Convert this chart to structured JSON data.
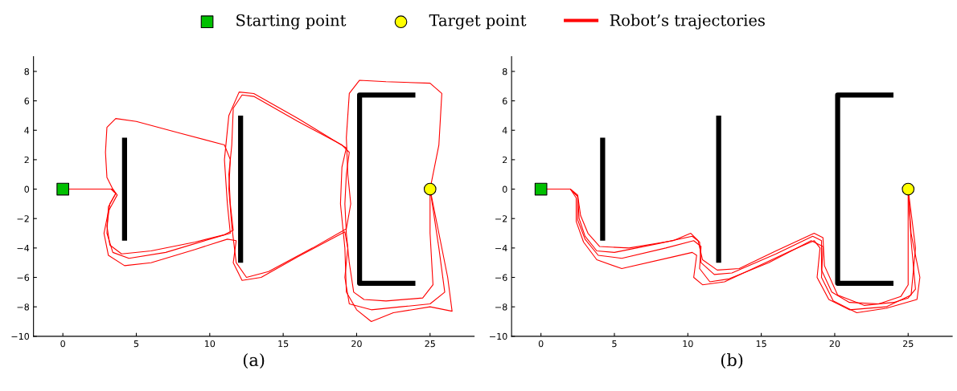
{
  "chart_data": [
    {
      "type": "line",
      "xlabel": "(a)",
      "xlim": [
        -2,
        28
      ],
      "ylim": [
        -10,
        9
      ],
      "xticks": [
        0,
        5,
        10,
        15,
        20,
        25
      ],
      "yticks": [
        -10,
        -8,
        -6,
        -4,
        -2,
        0,
        2,
        4,
        6,
        8
      ],
      "grid": false,
      "legend": "top",
      "series": [
        {
          "color": "#000000",
          "x": [
            4.2,
            4.2
          ],
          "values": [
            -3.5,
            3.5
          ]
        },
        {
          "color": "#000000",
          "x": [
            12.1,
            12.1
          ],
          "values": [
            -5,
            5
          ]
        },
        {
          "color": "#000000",
          "x": [
            24,
            20.2,
            20.2,
            24
          ],
          "values": [
            6.4,
            6.4,
            -6.4,
            -6.4
          ]
        },
        {
          "name": "Robot’s trajectories",
          "color": "#ff0000",
          "x": [
            0,
            3.3,
            3.6,
            3.2,
            3,
            3.2,
            4,
            6,
            9,
            11,
            11.6,
            11.4,
            11.3,
            11.5,
            11.6,
            12.2,
            13,
            16,
            19,
            19.5,
            19.3,
            19.2,
            19.3,
            19.5,
            19.8,
            20.5,
            22,
            24.5,
            25.2,
            25,
            25
          ],
          "values": [
            0,
            0,
            -0.3,
            -1,
            -2.5,
            -3.8,
            -4.4,
            -4.2,
            -3.6,
            -3.1,
            -2.8,
            -1,
            1,
            3,
            5.5,
            6.4,
            6.3,
            4.6,
            3,
            2.5,
            1,
            -1,
            -3,
            -5,
            -7,
            -7.5,
            -7.6,
            -7.4,
            -6.5,
            -3,
            0
          ]
        },
        {
          "color": "#ff0000",
          "x": [
            0,
            3.3,
            3.5,
            3,
            2.9,
            3,
            3.6,
            5,
            8,
            11,
            11.4,
            11.3,
            11.5,
            11.8,
            12.5,
            14,
            17,
            19.3,
            19.6,
            19.4,
            19.3,
            19.5,
            20.2,
            22,
            25,
            25.8,
            25.6,
            25
          ],
          "values": [
            0,
            0,
            -0.2,
            0.8,
            2.5,
            4.2,
            4.8,
            4.6,
            3.8,
            3,
            2,
            0,
            -2.5,
            -5,
            -6,
            -5.6,
            -4,
            -2.7,
            -1,
            1,
            3.5,
            6.5,
            7.4,
            7.3,
            7.2,
            6.5,
            3,
            0
          ]
        },
        {
          "color": "#ff0000",
          "x": [
            0,
            3.4,
            3.7,
            3.1,
            2.8,
            3.1,
            4.2,
            6,
            9,
            11.2,
            11.8,
            11.6,
            12.2,
            13.5,
            16,
            19.2,
            19.4,
            19.2,
            19.5,
            21,
            23,
            25,
            26,
            25.6,
            25
          ],
          "values": [
            0,
            0,
            -0.4,
            -1.5,
            -3,
            -4.5,
            -5.2,
            -5,
            -4.1,
            -3.4,
            -3.5,
            -5,
            -6.2,
            -6,
            -4.6,
            -2.9,
            -4,
            -6,
            -7.8,
            -8.2,
            -8,
            -7.8,
            -7,
            -4,
            0
          ]
        },
        {
          "color": "#ff0000",
          "x": [
            0,
            3.4,
            3.6,
            3.1,
            3,
            3.4,
            4.5,
            7,
            10,
            11.4,
            11.2,
            11,
            11.3,
            12,
            13,
            16,
            19.3,
            19,
            18.9,
            19.2,
            19.3,
            20,
            21,
            22.5,
            25,
            26.5,
            26.2,
            25
          ],
          "values": [
            0,
            0,
            -0.3,
            -1.2,
            -3,
            -4.3,
            -4.7,
            -4.3,
            -3.4,
            -3,
            -1,
            2,
            5,
            6.6,
            6.5,
            4.8,
            2.8,
            1.5,
            -1,
            -4,
            -7,
            -8.2,
            -9,
            -8.4,
            -8,
            -8.3,
            -6,
            0
          ]
        },
        {
          "name": "Starting point",
          "type": "scatter",
          "marker": "square",
          "color": "#00c000",
          "x": [
            0
          ],
          "values": [
            0
          ]
        },
        {
          "name": "Target point",
          "type": "scatter",
          "marker": "circle",
          "color": "#ffff00",
          "x": [
            25
          ],
          "values": [
            0
          ]
        }
      ]
    },
    {
      "type": "line",
      "xlabel": "(b)",
      "xlim": [
        -2,
        28
      ],
      "ylim": [
        -10,
        9
      ],
      "xticks": [
        0,
        5,
        10,
        15,
        20,
        25
      ],
      "yticks": [
        -10,
        -8,
        -6,
        -4,
        -2,
        0,
        2,
        4,
        6,
        8
      ],
      "grid": false,
      "legend": "top",
      "series": [
        {
          "color": "#000000",
          "x": [
            4.2,
            4.2
          ],
          "values": [
            -3.5,
            3.5
          ]
        },
        {
          "color": "#000000",
          "x": [
            12.1,
            12.1
          ],
          "values": [
            -5,
            5
          ]
        },
        {
          "color": "#000000",
          "x": [
            24,
            20.2,
            20.2,
            24
          ],
          "values": [
            6.4,
            6.4,
            -6.4,
            -6.4
          ]
        },
        {
          "name": "Robot’s trajectories",
          "color": "#ff0000",
          "x": [
            0,
            2,
            2.5,
            2.6,
            3,
            3.8,
            5,
            8,
            10.3,
            10.8,
            10.9,
            11.8,
            13,
            16,
            18.5,
            19.1,
            19.1,
            19.8,
            21,
            23,
            24.5,
            25,
            25,
            25
          ],
          "values": [
            0,
            0,
            -0.5,
            -2,
            -3.2,
            -4.2,
            -4.3,
            -3.7,
            -3.2,
            -3.6,
            -5,
            -5.8,
            -5.7,
            -4.4,
            -3.2,
            -3.5,
            -5.5,
            -7,
            -7.7,
            -7.8,
            -7.3,
            -6.5,
            -3,
            0
          ]
        },
        {
          "color": "#ff0000",
          "x": [
            0,
            2,
            2.4,
            2.4,
            2.9,
            3.8,
            5.5,
            9,
            10.3,
            10.6,
            10.4,
            11,
            12.5,
            14,
            17,
            18.6,
            19,
            18.8,
            19.6,
            21,
            23.5,
            25.2,
            25.5,
            25
          ],
          "values": [
            0,
            0,
            -0.6,
            -2.2,
            -3.6,
            -4.8,
            -5.4,
            -4.6,
            -4.3,
            -4.5,
            -6,
            -6.5,
            -6.3,
            -5.6,
            -4.2,
            -3.5,
            -4,
            -6,
            -7.5,
            -8.2,
            -8,
            -7.2,
            -4,
            0
          ]
        },
        {
          "color": "#ff0000",
          "x": [
            0,
            2,
            2.5,
            2.7,
            3.2,
            4,
            6,
            9,
            10.2,
            10.7,
            11,
            12,
            13.5,
            16,
            18.6,
            19.2,
            19.3,
            20.2,
            22,
            24,
            25,
            25.5,
            25.2,
            25
          ],
          "values": [
            0,
            0,
            -0.4,
            -1.8,
            -3,
            -3.9,
            -4,
            -3.5,
            -3,
            -3.5,
            -4.8,
            -5.5,
            -5.4,
            -4.2,
            -3,
            -3.3,
            -5.2,
            -7.2,
            -7.9,
            -7.7,
            -7.4,
            -6.8,
            -3.5,
            0
          ]
        },
        {
          "color": "#ff0000",
          "x": [
            0,
            2,
            2.5,
            2.5,
            3,
            3.9,
            5.5,
            8.5,
            10.4,
            10.9,
            10.8,
            11.5,
            12.8,
            15.5,
            18.4,
            19.2,
            19.1,
            19.9,
            21.5,
            23.5,
            25.6,
            25.8,
            25.2,
            25
          ],
          "values": [
            0,
            0,
            -0.5,
            -2.1,
            -3.4,
            -4.5,
            -4.7,
            -4,
            -3.5,
            -3.9,
            -5.4,
            -6.3,
            -6.1,
            -5,
            -3.5,
            -3.9,
            -6,
            -7.6,
            -8.4,
            -8.1,
            -7.5,
            -6,
            -3,
            0
          ]
        },
        {
          "name": "Starting point",
          "type": "scatter",
          "marker": "square",
          "color": "#00c000",
          "x": [
            0
          ],
          "values": [
            0
          ]
        },
        {
          "name": "Target point",
          "type": "scatter",
          "marker": "circle",
          "color": "#ffff00",
          "x": [
            25
          ],
          "values": [
            0
          ]
        }
      ]
    }
  ]
}
